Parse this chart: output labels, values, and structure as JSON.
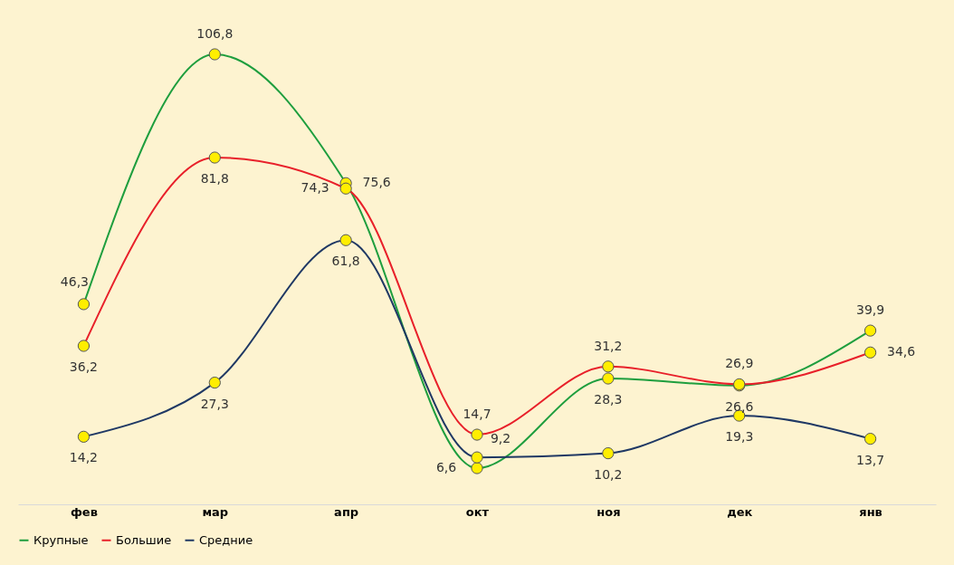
{
  "chart_data": {
    "type": "line",
    "categories": [
      "фев",
      "мар",
      "апр",
      "окт",
      "ноя",
      "дек",
      "янв"
    ],
    "series": [
      {
        "name": "Крупные",
        "color": "#1e9e3e",
        "values": [
          46.3,
          106.8,
          75.6,
          6.6,
          28.3,
          26.6,
          39.9
        ],
        "value_labels": [
          "46,3",
          "106,8",
          "75,6",
          "6,6",
          "28,3",
          "26,6",
          "39,9"
        ]
      },
      {
        "name": "Большие",
        "color": "#e8202a",
        "values": [
          36.2,
          81.8,
          74.3,
          14.7,
          31.2,
          26.9,
          34.6
        ],
        "value_labels": [
          "36,2",
          "81,8",
          "74,3",
          "14,7",
          "31,2",
          "26,9",
          "34,6"
        ]
      },
      {
        "name": "Средние",
        "color": "#1f3864",
        "values": [
          14.2,
          27.3,
          61.8,
          9.2,
          10.2,
          19.3,
          13.7
        ],
        "value_labels": [
          "14,2",
          "27,3",
          "61,8",
          "9,2",
          "10,2",
          "19,3",
          "13,7"
        ]
      }
    ],
    "marker": "circle",
    "legend": "bottom",
    "grid": false,
    "tick_labels": "x"
  }
}
